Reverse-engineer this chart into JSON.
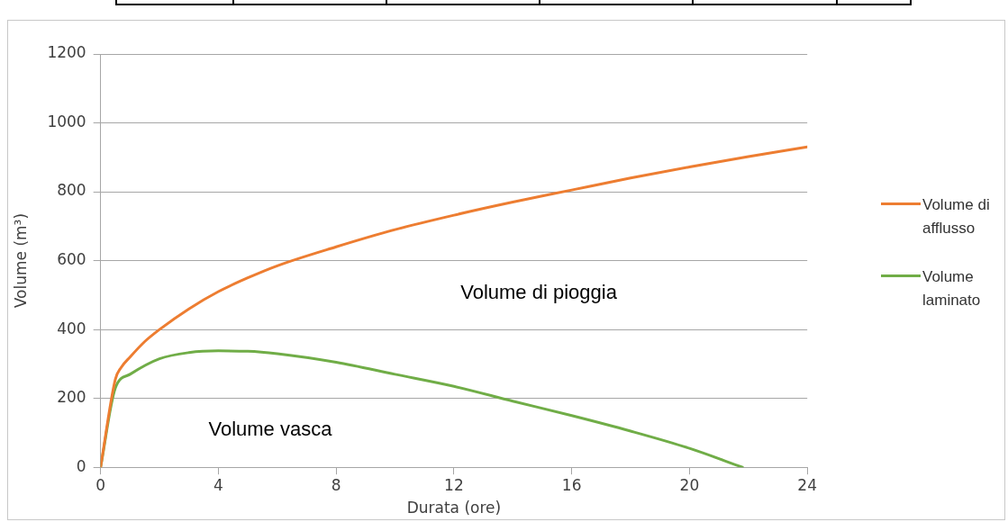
{
  "chart_data": {
    "type": "line",
    "xlabel": "Durata (ore)",
    "ylabel": "Volume (m³)",
    "xlim": [
      0,
      24
    ],
    "xticks": [
      0,
      4,
      8,
      12,
      16,
      20,
      24
    ],
    "ylim": [
      0,
      1200
    ],
    "yticks": [
      0,
      200,
      400,
      600,
      800,
      1000,
      1200
    ],
    "grid": "y",
    "legend": "right",
    "marker": "none",
    "line_style": "solid",
    "series": [
      {
        "name": "Volume di afflusso",
        "color": "#ed7d31",
        "x": [
          0,
          0.5,
          0.7,
          1,
          1.5,
          2,
          3,
          4,
          5,
          6,
          8,
          10,
          12,
          14,
          16,
          18,
          20,
          22,
          24
        ],
        "values": [
          0,
          255,
          290,
          320,
          365,
          400,
          460,
          510,
          550,
          585,
          640,
          690,
          732,
          770,
          805,
          840,
          872,
          902,
          930
        ]
      },
      {
        "name": "Volume laminato",
        "color": "#70ad47",
        "x": [
          0,
          0.5,
          1,
          2,
          3,
          4,
          5,
          6,
          8,
          10,
          12,
          14,
          16,
          18,
          20,
          21.8
        ],
        "values": [
          0,
          230,
          270,
          315,
          333,
          338,
          337,
          330,
          305,
          270,
          235,
          192,
          150,
          105,
          55,
          0
        ]
      }
    ],
    "annotations": [
      "Volume di pioggia",
      "Volume vasca"
    ]
  }
}
